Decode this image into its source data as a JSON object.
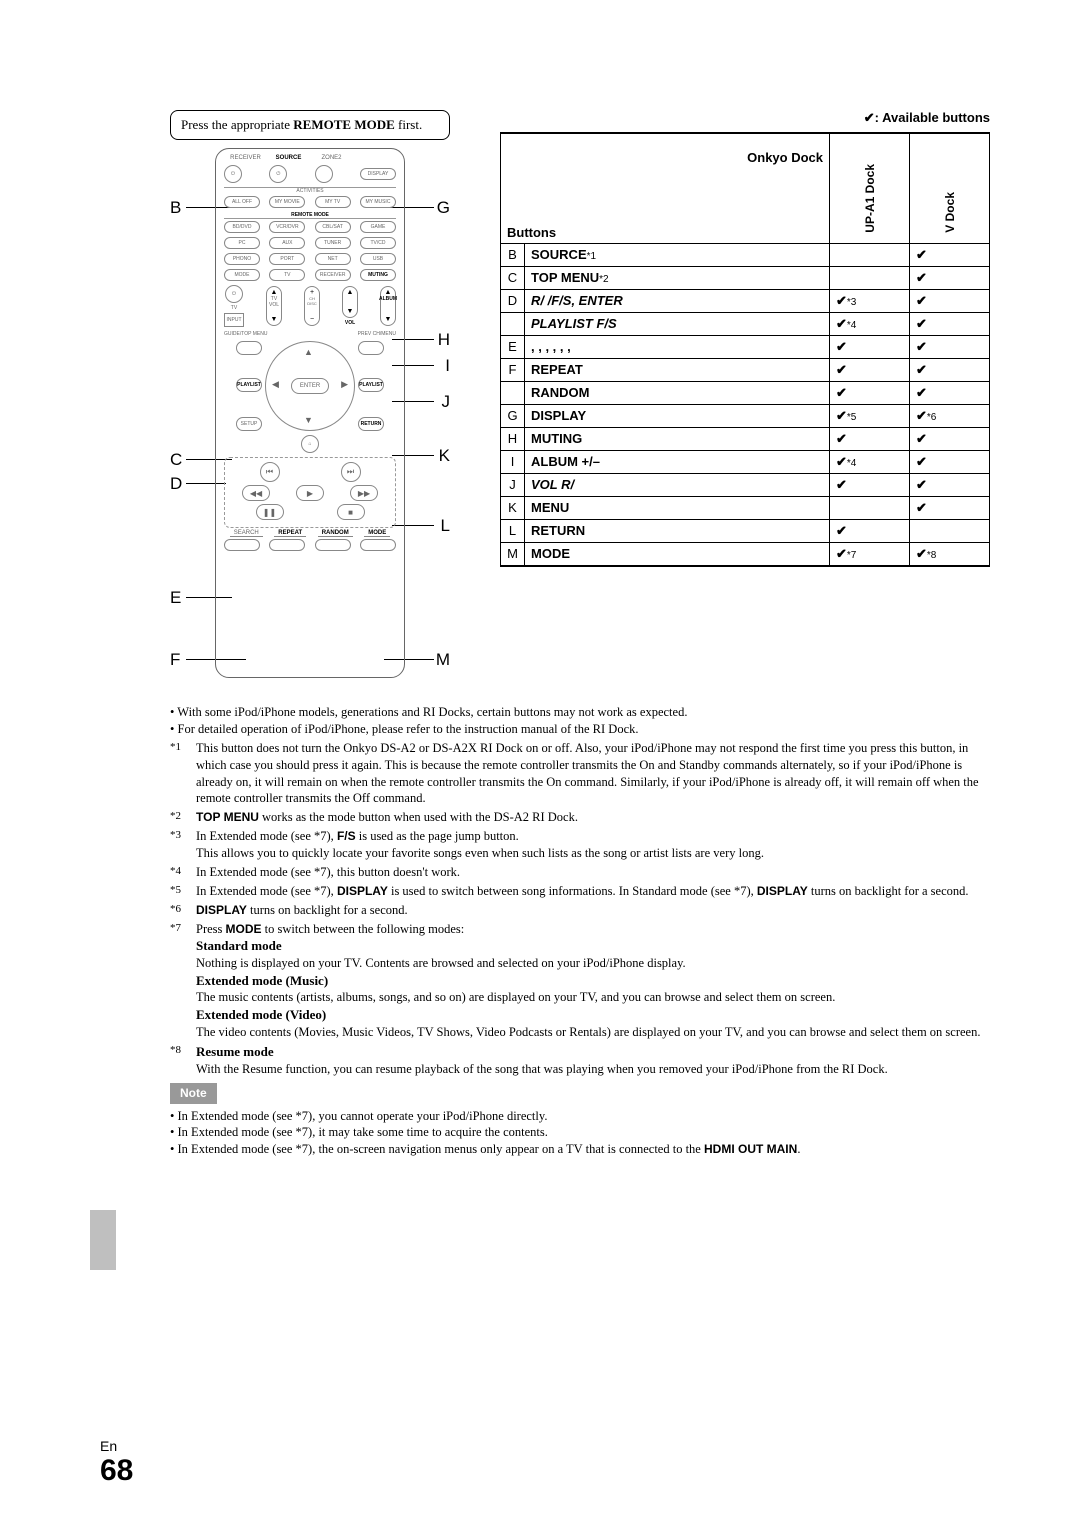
{
  "colors": {
    "bg": "#ffffff",
    "text": "#000000",
    "rule": "#000000",
    "noteBadgeBg": "#999999",
    "sideTab": "#bfbfbf"
  },
  "pressBox": {
    "prefix": "Press the appropriate ",
    "bold1": "REMOTE MODE",
    "suffix": " first."
  },
  "availLine": {
    "check": "✔",
    "bold": ": Available buttons"
  },
  "tableHead": {
    "group": "Onkyo Dock",
    "buttons": "Buttons",
    "col1": "UP-A1 Dock",
    "col2_prefix": "V",
    "col2": " Dock"
  },
  "rows": [
    {
      "l": "B",
      "name": "SOURCE",
      "sup": "*1",
      "c1": "",
      "c1s": "",
      "c2": "✔",
      "c2s": ""
    },
    {
      "l": "C",
      "name": "TOP MENU",
      "sup": "*2",
      "c1": "",
      "c1s": "",
      "c2": "✔",
      "c2s": ""
    },
    {
      "l": "D",
      "name": "R/ /F/S, ENTER",
      "sup": "",
      "c1": "✔",
      "c1s": "*3",
      "c2": "✔",
      "c2s": ""
    },
    {
      "l": "",
      "name": "PLAYLIST F/S",
      "sup": "",
      "c1": "✔",
      "c1s": "*4",
      "c2": "✔",
      "c2s": ""
    },
    {
      "l": "E",
      "name": ", , , , , ,",
      "sup": "",
      "c1": "✔",
      "c1s": "",
      "c2": "✔",
      "c2s": ""
    },
    {
      "l": "F",
      "name": "REPEAT",
      "sup": "",
      "c1": "✔",
      "c1s": "",
      "c2": "✔",
      "c2s": ""
    },
    {
      "l": "",
      "name": "RANDOM",
      "sup": "",
      "c1": "✔",
      "c1s": "",
      "c2": "✔",
      "c2s": ""
    },
    {
      "l": "G",
      "name": "DISPLAY",
      "sup": "",
      "c1": "✔",
      "c1s": "*5",
      "c2": "✔",
      "c2s": "*6"
    },
    {
      "l": "H",
      "name": "MUTING",
      "sup": "",
      "c1": "✔",
      "c1s": "",
      "c2": "✔",
      "c2s": ""
    },
    {
      "l": "I",
      "name": "ALBUM +/–",
      "sup": "",
      "c1": "✔",
      "c1s": "*4",
      "c2": "✔",
      "c2s": ""
    },
    {
      "l": "J",
      "name": "VOL R/",
      "sup": "",
      "c1": "✔",
      "c1s": "",
      "c2": "✔",
      "c2s": ""
    },
    {
      "l": "K",
      "name": "MENU",
      "sup": "",
      "c1": "",
      "c1s": "",
      "c2": "✔",
      "c2s": ""
    },
    {
      "l": "L",
      "name": "RETURN",
      "sup": "",
      "c1": "✔",
      "c1s": "",
      "c2": "",
      "c2s": ""
    },
    {
      "l": "M",
      "name": "MODE",
      "sup": "",
      "c1": "✔",
      "c1s": "*7",
      "c2": "✔",
      "c2s": "*8"
    }
  ],
  "callouts": {
    "B": "B",
    "C": "C",
    "D": "D",
    "E": "E",
    "F": "F",
    "G": "G",
    "H": "H",
    "I": "I",
    "J": "J",
    "K": "K",
    "L": "L",
    "M": "M"
  },
  "remoteLabels": {
    "receiver": "RECEIVER",
    "source": "SOURCE",
    "zone2": "ZONE2",
    "display": "DISPLAY",
    "alloff": "ALL OFF",
    "mymovie": "MY MOVIE",
    "mytv": "MY TV",
    "mymusic": "MY MUSIC",
    "remotemode": "REMOTE MODE",
    "inputsel": "INPUT SELECTOR",
    "bddvd": "BD/DVD",
    "vcrdvr": "VCR/DVR",
    "cblsat": "CBL/SAT",
    "game": "GAME",
    "pc": "PC",
    "aux": "AUX",
    "tuner": "TUNER",
    "tvcd": "TV/CD",
    "phono": "PHONO",
    "port": "PORT",
    "net": "NET",
    "usb": "USB",
    "mode": "MODE",
    "tv": "TV",
    "receiver2": "RECEIVER",
    "muting": "MUTING",
    "chdisc": "CH\nDISC",
    "vol": "VOL",
    "album": "ALBUM",
    "tvvol": "TV\nVOL",
    "input": "INPUT",
    "guide": "GUIDE/TOP MENU",
    "prevch": "PREV CH/MENU",
    "playlist": "PLAYLIST",
    "enter": "ENTER",
    "setup": "SETUP",
    "return": "RETURN",
    "search": "SEARCH",
    "repeat": "REPEAT",
    "random": "RANDOM",
    "mode2": "MODE",
    "activities": "ACTIVITIES"
  },
  "notes": {
    "bullets": [
      "With some iPod/iPhone models, generations and RI Docks, certain buttons may not work as expected.",
      "For detailed operation of iPod/iPhone, please refer to the instruction manual of the RI Dock."
    ],
    "fn": [
      {
        "n": "*1",
        "t": "This button does not turn the Onkyo DS-A2 or DS-A2X RI Dock on or off. Also, your iPod/iPhone may not respond the first time you press this button, in which case you should press it again. This is because the remote controller transmits the On and Standby commands alternately, so if your iPod/iPhone is already on, it will remain on when the remote controller transmits the On command. Similarly, if your iPod/iPhone is already off, it will remain off when the remote controller transmits the Off command."
      },
      {
        "n": "*2",
        "t_pre": "",
        "b": "TOP MENU",
        "t_post": " works as the mode button when used with the DS-A2 RI Dock."
      },
      {
        "n": "*3",
        "t_pre": "In Extended mode (see *7), ",
        "b": "F/S",
        "t_post": " is used as the page jump button.",
        "extra": "This allows you to quickly locate your favorite songs even when such lists as the song or artist lists are very long."
      },
      {
        "n": "*4",
        "t": "In Extended mode (see *7), this button doesn't work."
      },
      {
        "n": "*5",
        "t_pre": "In Extended mode (see *7), ",
        "b": "DISPLAY",
        "t_mid": " is used to switch between song informations. In Standard mode (see *7), ",
        "b2": "DISPLAY",
        "t_post": " turns on backlight for a second."
      },
      {
        "n": "*6",
        "b": "DISPLAY",
        "t_post": " turns on backlight for a second."
      },
      {
        "n": "*7",
        "t_pre": "Press ",
        "b": "MODE",
        "t_post": " to switch between the following modes:"
      },
      {
        "n": "*8",
        "hdr": "Resume mode",
        "t": "With the Resume function, you can resume playback of the song that was playing when you removed your iPod/iPhone from the RI Dock."
      }
    ],
    "modes": [
      {
        "hdr": "Standard mode",
        "t": "Nothing is displayed on your TV. Contents are browsed and selected on your iPod/iPhone display."
      },
      {
        "hdr": "Extended mode (Music)",
        "t": "The music contents (artists, albums, songs, and so on) are displayed on your TV, and you can browse and select them on screen."
      },
      {
        "hdr": "Extended mode (Video)",
        "t": "The video contents (Movies, Music Videos, TV Shows, Video Podcasts or Rentals) are displayed on your TV, and you can browse and select them on screen."
      }
    ],
    "noteBadge": "Note",
    "afterNote": [
      "In Extended mode (see *7), you cannot operate your iPod/iPhone directly.",
      "In Extended mode (see *7), it may take some time to acquire the contents."
    ],
    "afterNoteLast_pre": "In Extended mode (see *7), the on-screen navigation menus only appear on a TV that is connected to the ",
    "afterNoteLast_b": "HDMI OUT MAIN",
    "afterNoteLast_post": "."
  },
  "page": {
    "lang": "En",
    "num": "68"
  }
}
